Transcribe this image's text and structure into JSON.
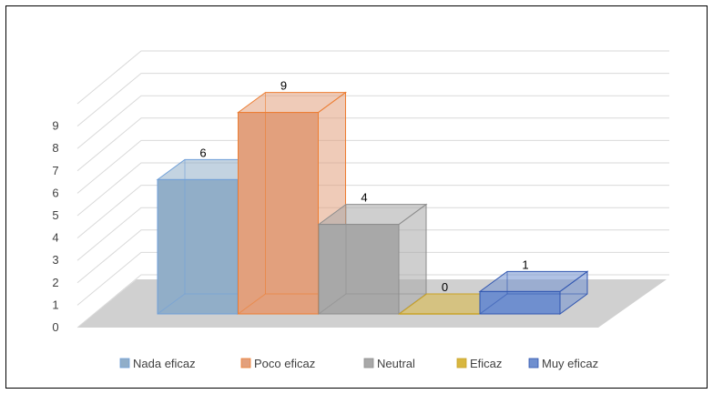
{
  "chart_data": {
    "type": "bar",
    "title": "",
    "xlabel": "",
    "ylabel": "",
    "ylim": [
      0,
      10
    ],
    "y_ticks": [
      "0",
      "1",
      "2",
      "3",
      "4",
      "5",
      "6",
      "7",
      "8",
      "9"
    ],
    "grid": true,
    "legend_position": "bottom",
    "categories": [
      "Nada eficaz",
      "Poco eficaz",
      "Neutral",
      "Eficaz",
      "Muy eficaz"
    ],
    "values": [
      6,
      9,
      4,
      0,
      1
    ],
    "data_labels": [
      "6",
      "9",
      "4",
      "0",
      "1"
    ],
    "colors": [
      "#91aec8",
      "#e2a07d",
      "#a8a8a8",
      "#d8b740",
      "#6f8fcf"
    ],
    "edge_colors": [
      "#6f9fd8",
      "#ed7d31",
      "#8c8c8c",
      "#c9a227",
      "#2f55b0"
    ],
    "style": "3d-bar"
  }
}
